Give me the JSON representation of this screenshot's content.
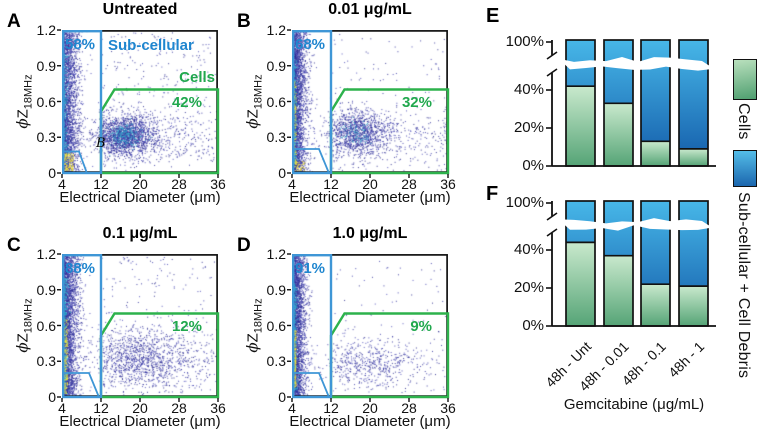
{
  "figure": {
    "scatter_common": {
      "xlabel": "Electrical Diameter (μm)",
      "ylabel": {
        "phi": "ϕ",
        "z": "Z",
        "sub": "18MHz"
      },
      "xticks": [
        "4",
        "12",
        "20",
        "28",
        "36"
      ],
      "yticks": [
        "0",
        "0.3",
        "0.6",
        "0.9",
        "1.2"
      ]
    },
    "panels": [
      {
        "letter": "A",
        "title": "Untreated",
        "sub_pct": "58%",
        "cells_pct": "42%",
        "sub_gate_label": "Sub-cellular",
        "cells_gate_label": "Cells",
        "debris_gate_label": "B"
      },
      {
        "letter": "B",
        "title": "0.01 μg/mL",
        "sub_pct": "68%",
        "cells_pct": "32%"
      },
      {
        "letter": "C",
        "title": "0.1 μg/mL",
        "sub_pct": "88%",
        "cells_pct": "12%"
      },
      {
        "letter": "D",
        "title": "1.0 μg/mL",
        "sub_pct": "91%",
        "cells_pct": "9%"
      }
    ],
    "bars": {
      "e_letter": "E",
      "f_letter": "F",
      "yticks": [
        "0%",
        "20%",
        "40%",
        "100%"
      ],
      "categories": [
        "48h - Unt",
        "48h - 0.01",
        "48h - 0.1",
        "48h - 1"
      ],
      "xlabel": "Gemcitabine (μg/mL)",
      "legend": [
        {
          "label": "Cells"
        },
        {
          "label": "Sub-cellular + Cell Debris"
        }
      ]
    },
    "colors": {
      "gate_blue": "#3e96d6",
      "gate_green": "#2db24c",
      "text_blue": "#1f86cf",
      "text_green": "#21a84e",
      "bar_green_top": "#c9e9cd",
      "bar_green_bottom": "#55a476",
      "bar_blue_top": "#47b7e8",
      "bar_blue_bottom": "#135ba9",
      "axis": "#111111",
      "scatter_low": "#3a3aa5",
      "scatter_mid": "#2fb3c9",
      "scatter_high": "#f5ea35"
    }
  },
  "chart_data": [
    {
      "type": "scatter",
      "panel": "A",
      "title": "Untreated",
      "xlabel": "Electrical Diameter (μm)",
      "ylabel": "ϕZ_18MHz",
      "xlim": [
        4,
        36
      ],
      "ylim": [
        0,
        1.2
      ],
      "xticks": [
        4,
        12,
        20,
        28,
        36
      ],
      "yticks": [
        0,
        0.3,
        0.6,
        0.9,
        1.2
      ],
      "gates": {
        "sub_cellular_pct": 58,
        "cells_pct": 42,
        "sub_gate_x": [
          4,
          12
        ],
        "cells_gate_poly": [
          [
            12,
            0
          ],
          [
            12,
            0.52
          ],
          [
            14.8,
            0.7
          ],
          [
            36,
            0.7
          ],
          [
            36,
            0
          ]
        ],
        "debris_gate": "B"
      },
      "density_clusters": [
        {
          "k": "col",
          "n": 2300,
          "sx": 1.75,
          "y0": 0,
          "y1": 1.2,
          "c": "indigo"
        },
        {
          "k": "col",
          "n": 500,
          "sx": 0.9,
          "y0": 0.05,
          "y1": 1.1,
          "c": "indigo"
        },
        {
          "k": "col",
          "n": 280,
          "sx": 0.55,
          "y0": 0.08,
          "y1": 1.0,
          "c": "cyan"
        },
        {
          "k": "box",
          "n": 130,
          "x0": 4.2,
          "x1": 6.3,
          "y0": 0.02,
          "y1": 0.17,
          "c": "yellow"
        },
        {
          "k": "blob",
          "n": 1600,
          "cx": 17,
          "cy": 0.32,
          "sx": 3.1,
          "sy": 0.085,
          "c": "indigo"
        },
        {
          "k": "blob",
          "n": 220,
          "cx": 16.6,
          "cy": 0.32,
          "sx": 1.6,
          "sy": 0.05,
          "c": "cyan"
        },
        {
          "k": "hband",
          "n": 520,
          "x0": 12.3,
          "x1": 35.8,
          "px": 1.35,
          "cy": 0.3,
          "sy": 0.14,
          "y0": 0.02,
          "y1": 0.62,
          "c": "indigo"
        },
        {
          "k": "box",
          "n": 170,
          "x0": 12,
          "x1": 35.5,
          "y0": 0.58,
          "y1": 1.18,
          "c": "indigo"
        }
      ]
    },
    {
      "type": "scatter",
      "panel": "B",
      "title": "0.01 μg/mL",
      "xlabel": "Electrical Diameter (μm)",
      "ylabel": "ϕZ_18MHz",
      "xlim": [
        4,
        36
      ],
      "ylim": [
        0,
        1.2
      ],
      "xticks": [
        4,
        12,
        20,
        28,
        36
      ],
      "yticks": [
        0,
        0.3,
        0.6,
        0.9,
        1.2
      ],
      "gates": {
        "sub_cellular_pct": 68,
        "cells_pct": 32
      },
      "density_clusters": [
        {
          "k": "col",
          "n": 2500,
          "sx": 1.5,
          "y0": 0,
          "y1": 1.2,
          "c": "indigo"
        },
        {
          "k": "col",
          "n": 600,
          "sx": 0.7,
          "y0": 0.03,
          "y1": 1.05,
          "c": "indigo"
        },
        {
          "k": "col",
          "n": 430,
          "sx": 0.45,
          "y0": 0.05,
          "y1": 0.95,
          "c": "cyan"
        },
        {
          "k": "box",
          "n": 150,
          "x0": 4,
          "x1": 4.8,
          "y0": 0.05,
          "y1": 0.78,
          "c": "yellow"
        },
        {
          "k": "box",
          "n": 45,
          "x0": 4.6,
          "x1": 6.6,
          "y0": 0.01,
          "y1": 0.1,
          "c": "yellow"
        },
        {
          "k": "blob",
          "n": 1050,
          "cx": 17.6,
          "cy": 0.34,
          "sx": 3.3,
          "sy": 0.095,
          "c": "indigo"
        },
        {
          "k": "blob",
          "n": 90,
          "cx": 17,
          "cy": 0.34,
          "sx": 1.5,
          "sy": 0.05,
          "c": "cyan"
        },
        {
          "k": "hband",
          "n": 430,
          "x0": 12.3,
          "x1": 35.8,
          "px": 1.35,
          "cy": 0.3,
          "sy": 0.13,
          "y0": 0.02,
          "y1": 0.6,
          "c": "indigo"
        },
        {
          "k": "box",
          "n": 70,
          "x0": 12,
          "x1": 35.5,
          "y0": 0.58,
          "y1": 1.18,
          "c": "indigo"
        }
      ]
    },
    {
      "type": "scatter",
      "panel": "C",
      "title": "0.1 μg/mL",
      "xlabel": "Electrical Diameter (μm)",
      "ylabel": "ϕZ_18MHz",
      "xlim": [
        4,
        36
      ],
      "ylim": [
        0,
        1.2
      ],
      "xticks": [
        4,
        12,
        20,
        28,
        36
      ],
      "yticks": [
        0,
        0.3,
        0.6,
        0.9,
        1.2
      ],
      "gates": {
        "sub_cellular_pct": 88,
        "cells_pct": 12
      },
      "density_clusters": [
        {
          "k": "col",
          "n": 2700,
          "sx": 1.65,
          "y0": 0,
          "y1": 1.2,
          "c": "indigo"
        },
        {
          "k": "col",
          "n": 650,
          "sx": 0.75,
          "y0": 0.02,
          "y1": 1.05,
          "c": "indigo"
        },
        {
          "k": "col",
          "n": 560,
          "sx": 0.5,
          "y0": 0.03,
          "y1": 1.0,
          "c": "cyan"
        },
        {
          "k": "box",
          "n": 230,
          "x0": 4,
          "x1": 5.1,
          "y0": 0.03,
          "y1": 0.66,
          "c": "yellow"
        },
        {
          "k": "blob",
          "n": 900,
          "cx": 20,
          "cy": 0.33,
          "sx": 5.6,
          "sy": 0.13,
          "c": "indigo"
        },
        {
          "k": "hband",
          "n": 430,
          "x0": 12.3,
          "x1": 35.8,
          "px": 1.2,
          "cy": 0.3,
          "sy": 0.15,
          "y0": 0.02,
          "y1": 0.6,
          "c": "indigo"
        },
        {
          "k": "box",
          "n": 110,
          "x0": 12,
          "x1": 35.5,
          "y0": 0.58,
          "y1": 1.18,
          "c": "indigo"
        }
      ]
    },
    {
      "type": "scatter",
      "panel": "D",
      "title": "1.0 μg/mL",
      "xlabel": "Electrical Diameter (μm)",
      "ylabel": "ϕZ_18MHz",
      "xlim": [
        4,
        36
      ],
      "ylim": [
        0,
        1.2
      ],
      "xticks": [
        4,
        12,
        20,
        28,
        36
      ],
      "yticks": [
        0,
        0.3,
        0.6,
        0.9,
        1.2
      ],
      "gates": {
        "sub_cellular_pct": 91,
        "cells_pct": 9
      },
      "density_clusters": [
        {
          "k": "col",
          "n": 2600,
          "sx": 1.35,
          "y0": 0,
          "y1": 1.2,
          "c": "indigo"
        },
        {
          "k": "col",
          "n": 600,
          "sx": 0.6,
          "y0": 0.03,
          "y1": 1.0,
          "c": "indigo"
        },
        {
          "k": "col",
          "n": 520,
          "sx": 0.42,
          "y0": 0.05,
          "y1": 0.95,
          "c": "cyan"
        },
        {
          "k": "box",
          "n": 210,
          "x0": 4,
          "x1": 4.75,
          "y0": 0.08,
          "y1": 0.56,
          "c": "yellow"
        },
        {
          "k": "blob",
          "n": 420,
          "cx": 20,
          "cy": 0.29,
          "sx": 5.3,
          "sy": 0.105,
          "c": "indigo"
        },
        {
          "k": "hband",
          "n": 180,
          "x0": 12.5,
          "x1": 35.5,
          "px": 1.2,
          "cy": 0.27,
          "sy": 0.12,
          "y0": 0.02,
          "y1": 0.55,
          "c": "indigo"
        },
        {
          "k": "box",
          "n": 55,
          "x0": 12,
          "x1": 35.5,
          "y0": 0.55,
          "y1": 1.15,
          "c": "indigo"
        }
      ]
    },
    {
      "type": "bar",
      "panel": "E",
      "stacked": true,
      "categories": [
        "48h - Unt",
        "48h - 0.01",
        "48h - 0.1",
        "48h - 1"
      ],
      "series": [
        {
          "name": "Cells",
          "values": [
            42,
            33,
            13,
            9
          ]
        },
        {
          "name": "Sub-cellular + Cell Debris",
          "values": [
            58,
            67,
            87,
            91
          ]
        }
      ],
      "ylim": [
        0,
        100
      ],
      "yticks": [
        "0%",
        "20%",
        "40%",
        "100%"
      ],
      "axis_break": [
        50,
        97
      ],
      "legend_position": "right"
    },
    {
      "type": "bar",
      "panel": "F",
      "stacked": true,
      "categories": [
        "48h - Unt",
        "48h - 0.01",
        "48h - 0.1",
        "48h - 1"
      ],
      "series": [
        {
          "name": "Cells",
          "values": [
            44,
            37,
            22,
            21
          ]
        },
        {
          "name": "Sub-cellular + Cell Debris",
          "values": [
            56,
            63,
            78,
            79
          ]
        }
      ],
      "ylim": [
        0,
        100
      ],
      "yticks": [
        "0%",
        "20%",
        "40%",
        "100%"
      ],
      "axis_break": [
        50,
        97
      ],
      "xlabel": "Gemcitabine (μg/mL)",
      "legend_position": "right"
    }
  ]
}
